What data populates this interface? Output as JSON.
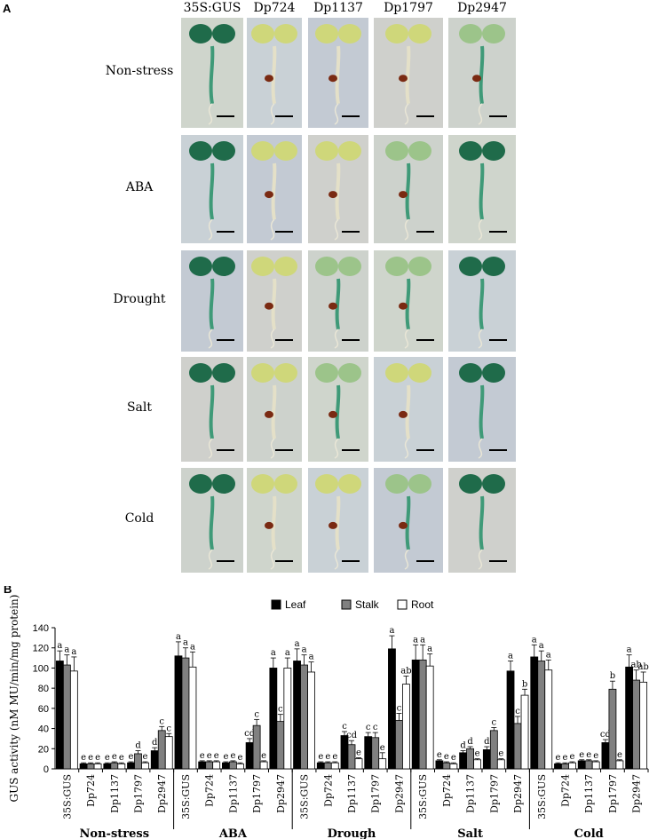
{
  "panel_a": {
    "label": "A",
    "columns": [
      "35S:GUS",
      "Dp724",
      "Dp1137",
      "Dp1797",
      "Dp2947"
    ],
    "rows": [
      "Non-stress",
      "ABA",
      "Drought",
      "Salt",
      "Cold"
    ],
    "tile_staining": [
      [
        "strong",
        "none",
        "none",
        "none",
        "moderate"
      ],
      [
        "strong",
        "none",
        "none",
        "moderate",
        "strong"
      ],
      [
        "strong",
        "none",
        "moderate",
        "moderate",
        "strong"
      ],
      [
        "strong",
        "none",
        "moderate",
        "none",
        "strong"
      ],
      [
        "strong",
        "none",
        "none",
        "moderate",
        "strong"
      ]
    ],
    "colors": {
      "stain_strong": "#1f6b4a",
      "stain_moderate": "#3f9a78",
      "cotyledon": "#cfd77a",
      "stem": "#e4e0c8",
      "seed": "#7a2a12"
    }
  },
  "chart_data": {
    "panel_label": "B",
    "type": "bar",
    "ylabel": "GUS activity (nM MU/min/mg protein)",
    "ylim": [
      0,
      140
    ],
    "yticks": [
      0,
      20,
      40,
      60,
      80,
      100,
      120,
      140
    ],
    "legend": {
      "placement": "top-center",
      "entries": [
        "Leaf",
        "Stalk",
        "Root"
      ]
    },
    "series_colors": {
      "Leaf": "#000000",
      "Stalk": "#808080",
      "Root": "#ffffff"
    },
    "groups": [
      {
        "name": "Non-stress",
        "categories": [
          "35S:GUS",
          "Dp724",
          "Dp1137",
          "Dp1797",
          "Dp2947"
        ],
        "Leaf": [
          107,
          5,
          5,
          6,
          18
        ],
        "Stalk": [
          103,
          5,
          6,
          15,
          38
        ],
        "Root": [
          97,
          5,
          5,
          6,
          32
        ],
        "errors": {
          "Leaf": [
            10,
            1,
            1,
            1,
            3
          ],
          "Stalk": [
            10,
            1,
            1,
            3,
            4
          ],
          "Root": [
            14,
            1,
            1,
            1,
            3
          ]
        },
        "letters": [
          [
            "a",
            "a",
            "a"
          ],
          [
            "e",
            "e",
            "e"
          ],
          [
            "e",
            "e",
            "e"
          ],
          [
            "e",
            "d",
            "e"
          ],
          [
            "d",
            "c",
            "c"
          ]
        ]
      },
      {
        "name": "ABA",
        "categories": [
          "35S:GUS",
          "Dp724",
          "Dp1137",
          "Dp1797",
          "Dp2947"
        ],
        "Leaf": [
          112,
          7,
          6,
          26,
          100
        ],
        "Stalk": [
          110,
          7,
          7,
          43,
          47
        ],
        "Root": [
          101,
          7,
          5,
          7,
          100
        ],
        "errors": {
          "Leaf": [
            14,
            1,
            1,
            4,
            10
          ],
          "Stalk": [
            10,
            1,
            1,
            6,
            7
          ],
          "Root": [
            15,
            1,
            1,
            1,
            10
          ]
        },
        "letters": [
          [
            "a",
            "a",
            "a"
          ],
          [
            "e",
            "e",
            "e"
          ],
          [
            "e",
            "e",
            "e"
          ],
          [
            "cd",
            "c",
            "e"
          ],
          [
            "a",
            "c",
            "a"
          ]
        ]
      },
      {
        "name": "Drough",
        "categories": [
          "35S:GUS",
          "Dp724",
          "Dp1137",
          "Dp1797",
          "Dp2947"
        ],
        "Leaf": [
          107,
          6,
          33,
          32,
          119
        ],
        "Stalk": [
          103,
          6,
          24,
          31,
          48
        ],
        "Root": [
          96,
          6,
          10,
          10,
          84
        ],
        "errors": {
          "Leaf": [
            12,
            1,
            4,
            4,
            13
          ],
          "Stalk": [
            10,
            1,
            4,
            5,
            7
          ],
          "Root": [
            10,
            1,
            1,
            6,
            8
          ]
        },
        "letters": [
          [
            "a",
            "a",
            "a"
          ],
          [
            "e",
            "e",
            "e"
          ],
          [
            "c",
            "cd",
            "e"
          ],
          [
            "c",
            "c",
            "e"
          ],
          [
            "a",
            "c",
            "ab"
          ]
        ]
      },
      {
        "name": "Salt",
        "categories": [
          "35S:GUS",
          "Dp724",
          "Dp1137",
          "Dp1797",
          "Dp2947"
        ],
        "Leaf": [
          108,
          8,
          16,
          19,
          97
        ],
        "Stalk": [
          108,
          6,
          20,
          38,
          45
        ],
        "Root": [
          102,
          5,
          9,
          9,
          73
        ],
        "errors": {
          "Leaf": [
            15,
            1,
            2,
            3,
            10
          ],
          "Stalk": [
            15,
            1,
            2,
            3,
            7
          ],
          "Root": [
            12,
            1,
            1,
            1,
            6
          ]
        },
        "letters": [
          [
            "a",
            "a",
            "a"
          ],
          [
            "e",
            "e",
            "e"
          ],
          [
            "d",
            "d",
            "e"
          ],
          [
            "d",
            "c",
            "e"
          ],
          [
            "a",
            "c",
            "b"
          ]
        ]
      },
      {
        "name": "Cold",
        "categories": [
          "35S:GUS",
          "Dp724",
          "Dp1137",
          "Dp1797",
          "Dp2947"
        ],
        "Leaf": [
          111,
          5,
          8,
          26,
          101
        ],
        "Stalk": [
          107,
          5,
          8,
          79,
          88
        ],
        "Root": [
          98,
          6,
          7,
          8,
          86
        ],
        "errors": {
          "Leaf": [
            12,
            1,
            1,
            3,
            12
          ],
          "Stalk": [
            10,
            1,
            1,
            8,
            10
          ],
          "Root": [
            10,
            1,
            1,
            1,
            10
          ]
        },
        "letters": [
          [
            "a",
            "a",
            "a"
          ],
          [
            "e",
            "e",
            "e"
          ],
          [
            "e",
            "e",
            "e"
          ],
          [
            "cd",
            "b",
            "e"
          ],
          [
            "a",
            "ab",
            "ab"
          ]
        ]
      }
    ]
  }
}
